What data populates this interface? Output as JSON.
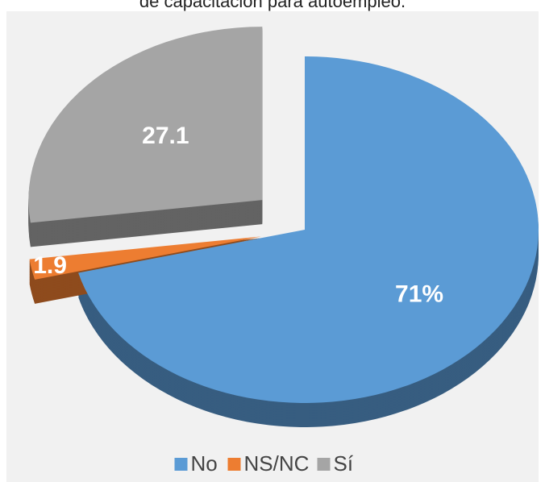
{
  "chart_data": {
    "type": "pie",
    "title": "de capacitación para autoempleo.",
    "categories": [
      "No",
      "NS/NC",
      "Sí"
    ],
    "values": [
      71,
      1.9,
      27.1
    ],
    "value_labels": [
      "71%",
      "1.9",
      "27.1"
    ],
    "colors": [
      "#5b9bd5",
      "#ed7d31",
      "#a5a5a5"
    ],
    "legend": "bottom"
  }
}
